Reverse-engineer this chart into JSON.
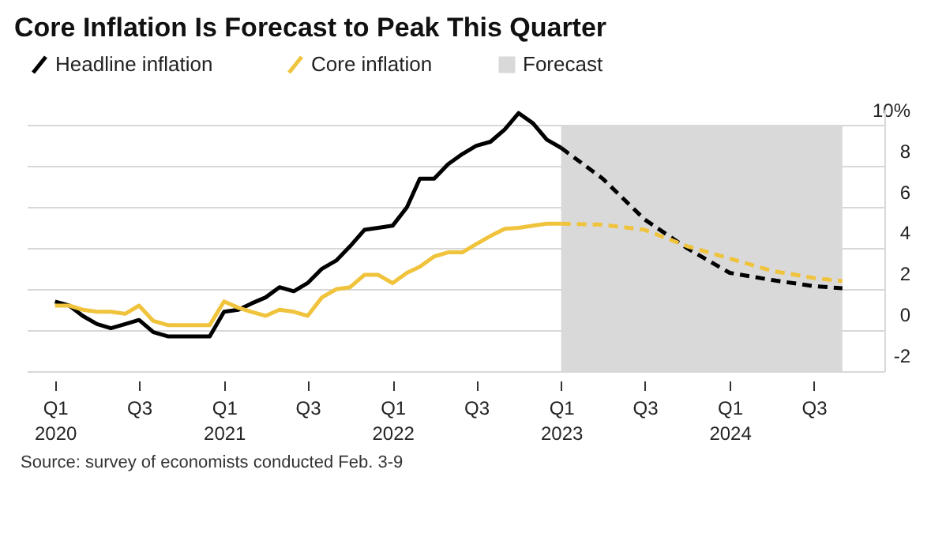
{
  "chart_data": {
    "type": "line",
    "title": "Core Inflation Is Forecast to Peak This Quarter",
    "series": [
      {
        "name": "Headline inflation",
        "color": "#000000",
        "line_style": "solid",
        "x": [
          "2020-01",
          "2020-02",
          "2020-03",
          "2020-04",
          "2020-05",
          "2020-06",
          "2020-07",
          "2020-08",
          "2020-09",
          "2020-10",
          "2020-11",
          "2020-12",
          "2021-01",
          "2021-02",
          "2021-03",
          "2021-04",
          "2021-05",
          "2021-06",
          "2021-07",
          "2021-08",
          "2021-09",
          "2021-10",
          "2021-11",
          "2021-12",
          "2022-01",
          "2022-02",
          "2022-03",
          "2022-04",
          "2022-05",
          "2022-06",
          "2022-07",
          "2022-08",
          "2022-09",
          "2022-10",
          "2022-11",
          "2022-12",
          "2023-01"
        ],
        "values": [
          1.4,
          1.2,
          0.7,
          0.3,
          0.1,
          0.3,
          0.5,
          -0.1,
          -0.3,
          -0.3,
          -0.3,
          -0.3,
          0.9,
          1.0,
          1.3,
          1.6,
          2.1,
          1.9,
          2.3,
          3.0,
          3.4,
          4.1,
          4.9,
          5.0,
          5.1,
          6.0,
          7.4,
          7.4,
          8.1,
          8.6,
          9.0,
          9.2,
          9.8,
          10.6,
          10.1,
          9.3,
          8.9
        ]
      },
      {
        "color": "#000000",
        "line_style": "dashed",
        "x": [
          "2023-01",
          "2023-04",
          "2023-07",
          "2023-10",
          "2024-01",
          "2024-04",
          "2024-07",
          "2024-09"
        ],
        "values": [
          8.9,
          7.4,
          5.4,
          4.0,
          2.8,
          2.45,
          2.15,
          2.05
        ]
      },
      {
        "name": "Core inflation",
        "color": "#f0c33c",
        "line_style": "solid",
        "x": [
          "2020-01",
          "2020-02",
          "2020-03",
          "2020-04",
          "2020-05",
          "2020-06",
          "2020-07",
          "2020-08",
          "2020-09",
          "2020-10",
          "2020-11",
          "2020-12",
          "2021-01",
          "2021-02",
          "2021-03",
          "2021-04",
          "2021-05",
          "2021-06",
          "2021-07",
          "2021-08",
          "2021-09",
          "2021-10",
          "2021-11",
          "2021-12",
          "2022-01",
          "2022-02",
          "2022-03",
          "2022-04",
          "2022-05",
          "2022-06",
          "2022-07",
          "2022-08",
          "2022-09",
          "2022-10",
          "2022-11",
          "2022-12",
          "2023-01"
        ],
        "values": [
          1.2,
          1.2,
          1.0,
          0.9,
          0.9,
          0.8,
          1.2,
          0.45,
          0.25,
          0.25,
          0.25,
          0.25,
          1.4,
          1.1,
          0.9,
          0.7,
          1.0,
          0.9,
          0.7,
          1.6,
          2.0,
          2.1,
          2.7,
          2.7,
          2.3,
          2.8,
          3.1,
          3.6,
          3.8,
          3.8,
          4.2,
          4.6,
          4.95,
          5.0,
          5.1,
          5.2,
          5.2
        ]
      },
      {
        "color": "#f0c33c",
        "line_style": "dashed",
        "x": [
          "2023-01",
          "2023-04",
          "2023-07",
          "2023-10",
          "2024-01",
          "2024-04",
          "2024-07",
          "2024-09"
        ],
        "values": [
          5.2,
          5.15,
          4.9,
          4.1,
          3.5,
          2.9,
          2.55,
          2.4
        ]
      }
    ],
    "bands": [
      {
        "axis": "x",
        "from": "2023-01",
        "to": "2024-09",
        "label": "Forecast",
        "color": "#d9d9d9"
      }
    ],
    "xlim": [
      "2019-11",
      "2024-12"
    ],
    "xticks": [
      {
        "value": "2020-01",
        "label": "Q1 2020"
      },
      {
        "value": "2020-07",
        "label": "Q3"
      },
      {
        "value": "2021-01",
        "label": "Q1 2021"
      },
      {
        "value": "2021-07",
        "label": "Q3"
      },
      {
        "value": "2022-01",
        "label": "Q1 2022"
      },
      {
        "value": "2022-07",
        "label": "Q3"
      },
      {
        "value": "2023-01",
        "label": "Q1 2023"
      },
      {
        "value": "2023-07",
        "label": "Q3"
      },
      {
        "value": "2024-01",
        "label": "Q1 2024"
      },
      {
        "value": "2024-07",
        "label": "Q3"
      }
    ],
    "ylim": [
      -2,
      10.8
    ],
    "yticks": [
      -2,
      0,
      2,
      4,
      6,
      8,
      {
        "value": 10,
        "label": "10%"
      }
    ],
    "grid": "y",
    "legend": "top left",
    "annotations": [
      "Source: survey of economists conducted Feb. 3-9"
    ]
  }
}
